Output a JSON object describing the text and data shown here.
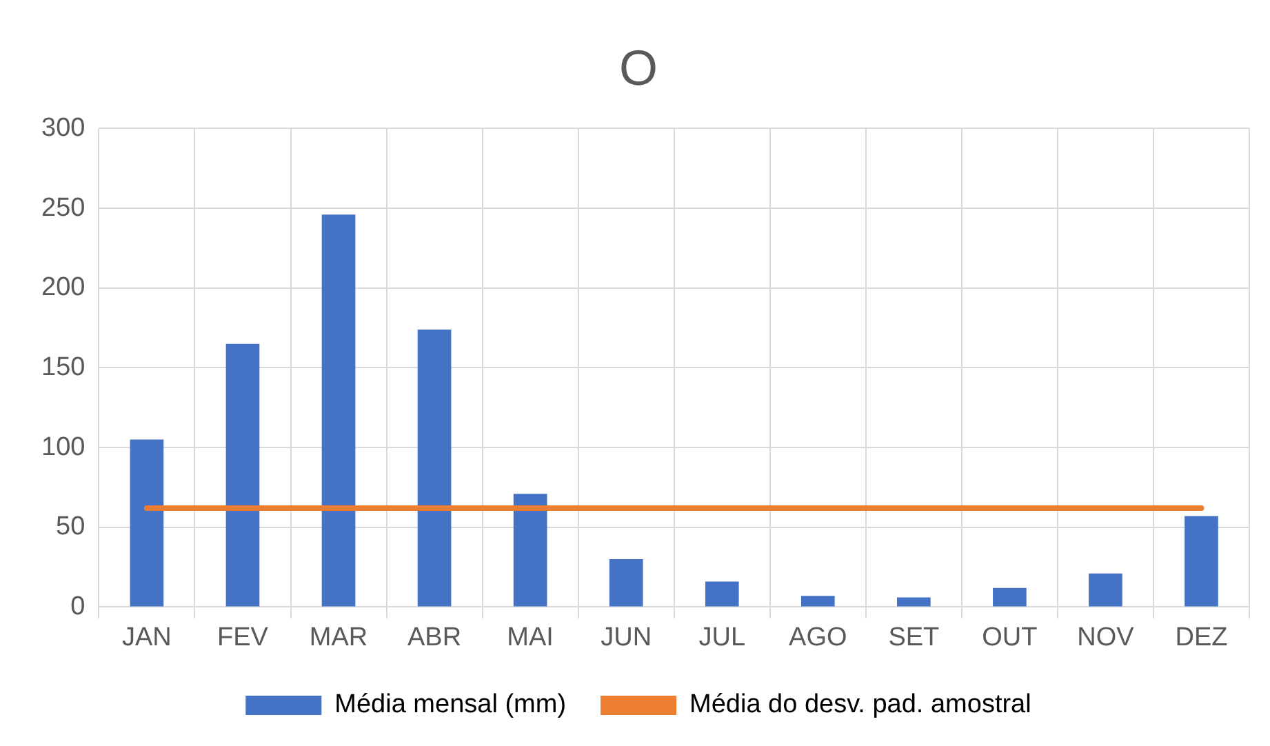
{
  "chart_data": {
    "type": "bar",
    "title": "O",
    "categories": [
      "JAN",
      "FEV",
      "MAR",
      "ABR",
      "MAI",
      "JUN",
      "JUL",
      "AGO",
      "SET",
      "OUT",
      "NOV",
      "DEZ"
    ],
    "series": [
      {
        "name": "Média mensal (mm)",
        "color": "#4472c4",
        "values": [
          105,
          165,
          246,
          174,
          71,
          30,
          16,
          7,
          6,
          12,
          21,
          57
        ]
      },
      {
        "name": "Média do desv. pad. amostral",
        "type": "line",
        "color": "#ed7d31",
        "values": [
          62,
          62,
          62,
          62,
          62,
          62,
          62,
          62,
          62,
          62,
          62,
          62
        ]
      }
    ],
    "ylim": [
      0,
      300
    ],
    "yticks": [
      0,
      50,
      100,
      150,
      200,
      250,
      300
    ],
    "grid": true,
    "legend": "bottom",
    "marker": "none"
  }
}
